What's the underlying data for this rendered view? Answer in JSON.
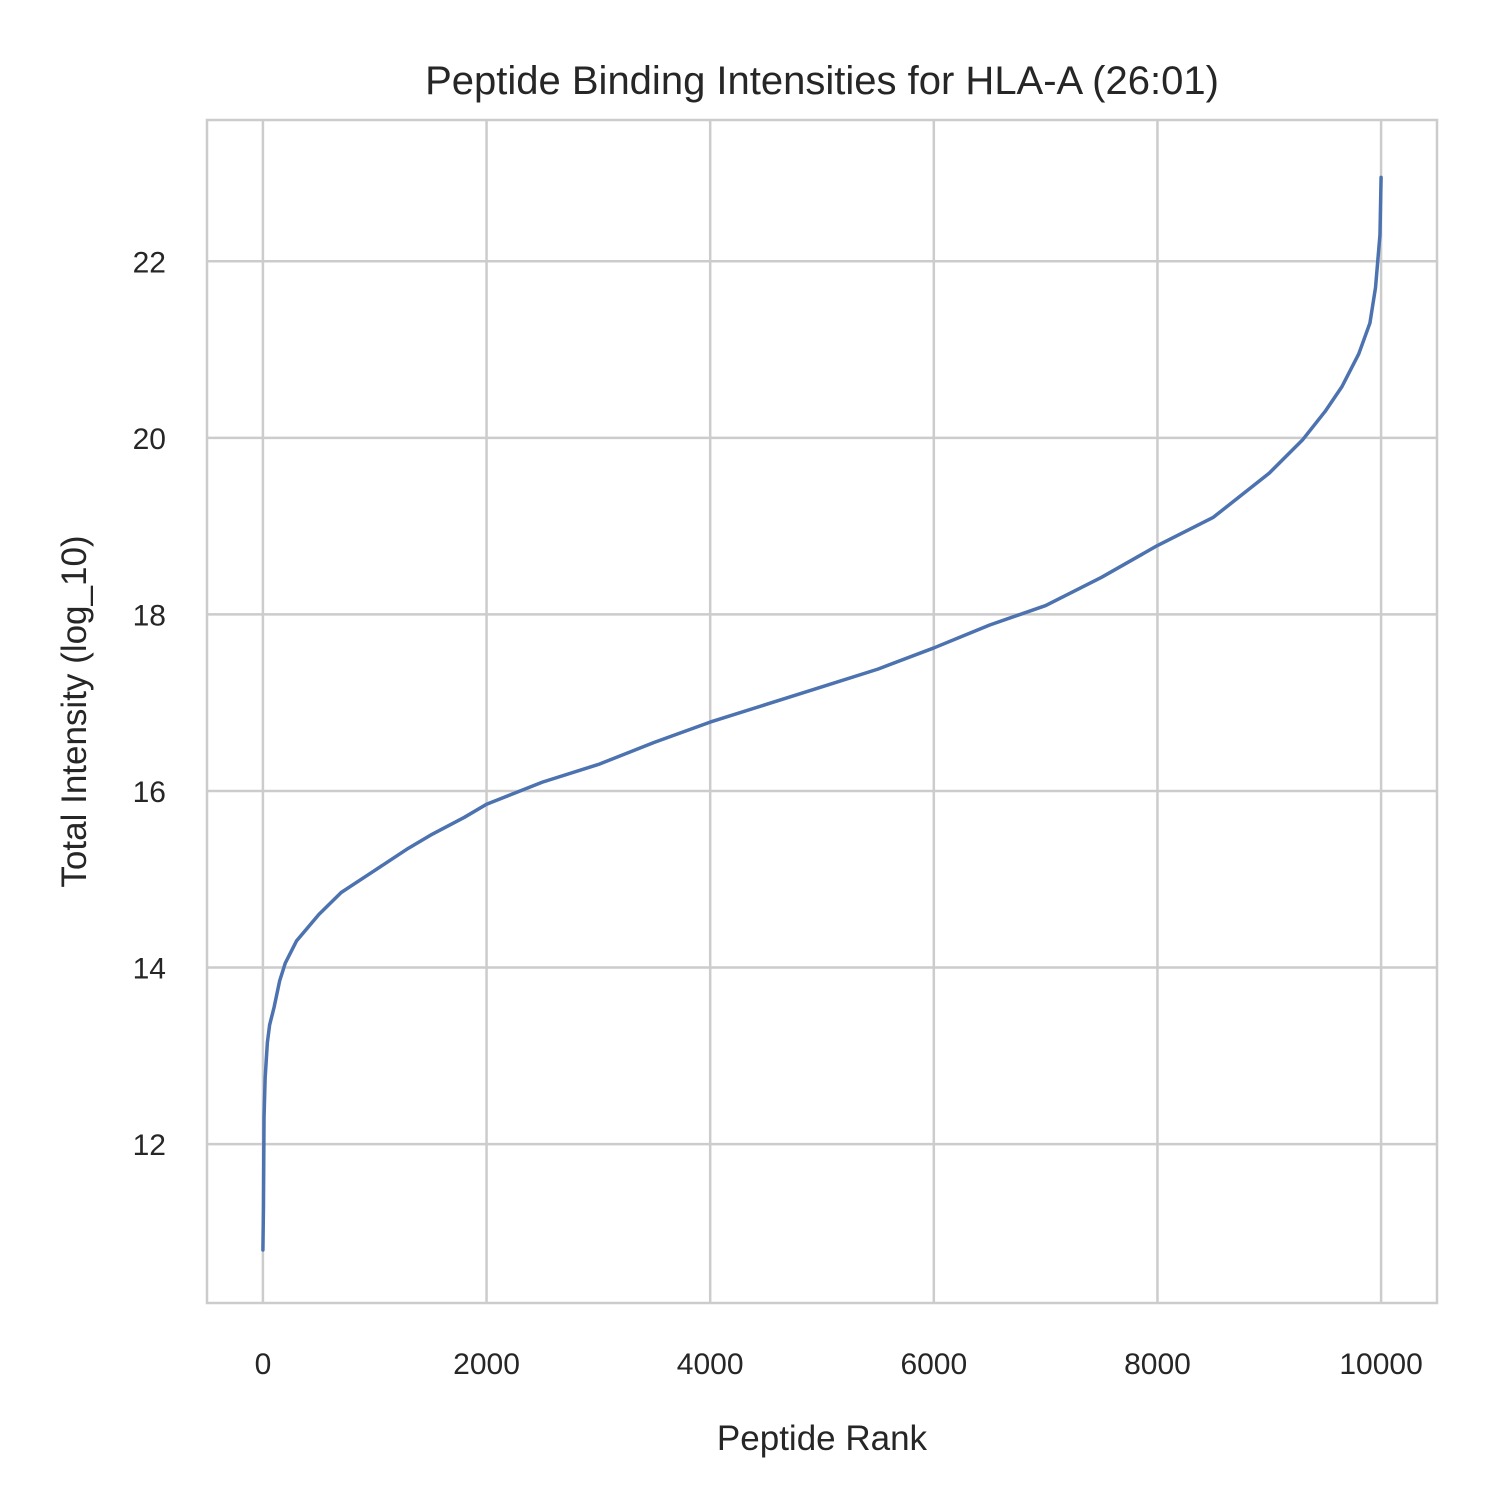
{
  "chart_data": {
    "type": "line",
    "title": "Peptide Binding Intensities for HLA-A (26:01)",
    "xlabel": "Peptide Rank",
    "ylabel": "Total Intensity (log_10)",
    "xlim": [
      -500,
      10500
    ],
    "ylim": [
      10.2,
      23.6
    ],
    "xticks": [
      0,
      2000,
      4000,
      6000,
      8000,
      10000
    ],
    "xtick_labels": [
      "0",
      "2000",
      "4000",
      "6000",
      "8000",
      "10000"
    ],
    "yticks": [
      12,
      14,
      16,
      18,
      20,
      22
    ],
    "ytick_labels": [
      "12",
      "14",
      "16",
      "18",
      "20",
      "22"
    ],
    "grid": true,
    "legend": "none",
    "series": [
      {
        "color": "#4c72b0",
        "x": [
          0,
          5,
          10,
          20,
          40,
          60,
          100,
          150,
          200,
          300,
          400,
          500,
          700,
          1000,
          1300,
          1500,
          1800,
          2000,
          2500,
          3000,
          3500,
          4000,
          4500,
          5000,
          5500,
          6000,
          6500,
          7000,
          7500,
          8000,
          8500,
          9000,
          9300,
          9500,
          9650,
          9800,
          9900,
          9950,
          9990,
          10000
        ],
        "values": [
          10.8,
          11.3,
          12.3,
          12.75,
          13.15,
          13.35,
          13.55,
          13.85,
          14.05,
          14.3,
          14.45,
          14.6,
          14.85,
          15.1,
          15.35,
          15.5,
          15.7,
          15.85,
          16.1,
          16.3,
          16.55,
          16.78,
          16.98,
          17.18,
          17.38,
          17.62,
          17.88,
          18.1,
          18.42,
          18.78,
          19.1,
          19.6,
          19.98,
          20.3,
          20.58,
          20.95,
          21.3,
          21.7,
          22.3,
          22.95
        ]
      }
    ]
  }
}
